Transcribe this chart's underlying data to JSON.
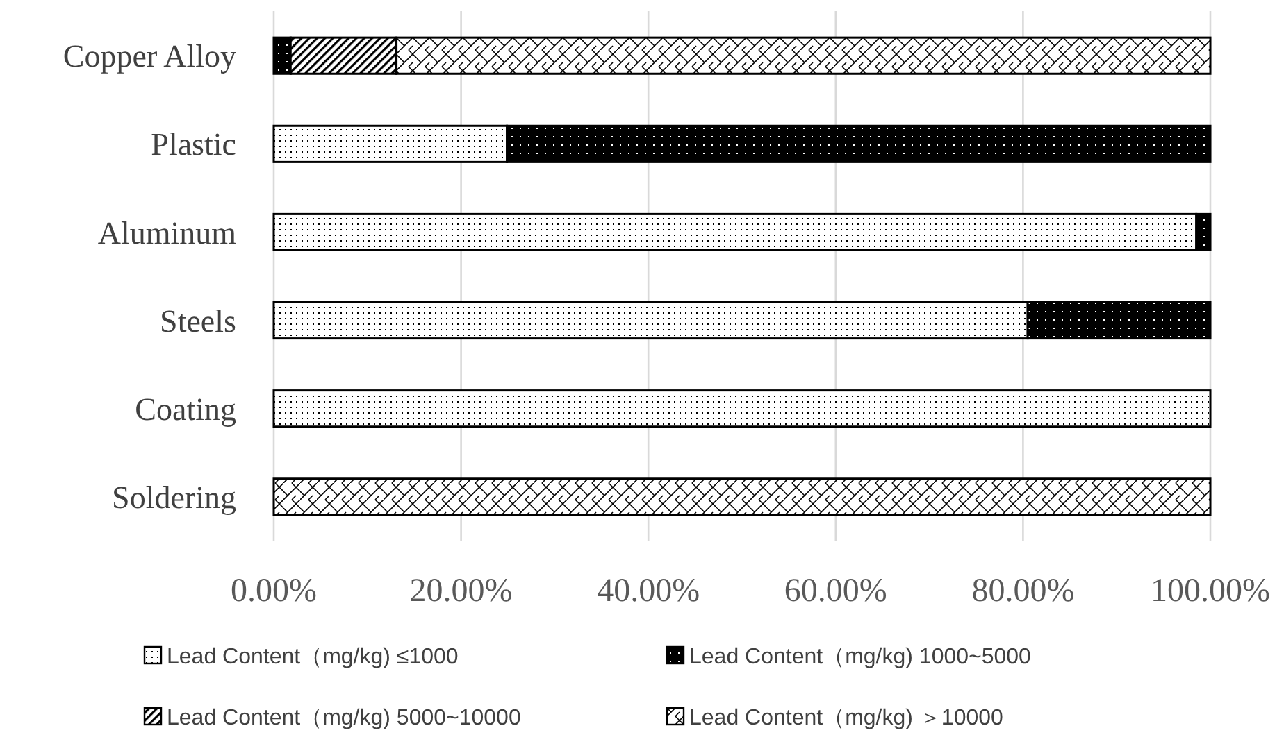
{
  "chart_data": {
    "type": "bar",
    "orientation": "horizontal",
    "stacked": true,
    "categories": [
      "Copper Alloy",
      "Plastic",
      "Aluminum",
      "Steels",
      "Coating",
      "Soldering"
    ],
    "series": [
      {
        "name": "Lead Content（mg/kg) ≤1000",
        "color": "#000000",
        "values": [
          0,
          24.9,
          98.5,
          80.5,
          100,
          0
        ]
      },
      {
        "name": "Lead Content（mg/kg) 1000~5000",
        "color": "#000000",
        "values": [
          1.8,
          75.1,
          1.5,
          19.5,
          0,
          0
        ]
      },
      {
        "name": "Lead Content（mg/kg) 5000~10000",
        "color": "#000000",
        "values": [
          11.3,
          0,
          0,
          0,
          0,
          0
        ]
      },
      {
        "name": "Lead Content（mg/kg) ＞10000",
        "color": "#000000",
        "values": [
          86.9,
          0,
          0,
          0,
          0,
          100
        ]
      }
    ],
    "xlim": [
      0,
      100
    ],
    "xticks": [
      {
        "value": 0,
        "label": "0.00%"
      },
      {
        "value": 20,
        "label": "20.00%"
      },
      {
        "value": 40,
        "label": "40.00%"
      },
      {
        "value": 60,
        "label": "60.00%"
      },
      {
        "value": 80,
        "label": "80.00%"
      },
      {
        "value": 100,
        "label": "100.00%"
      }
    ],
    "grid": "x",
    "legend": "bottom"
  }
}
